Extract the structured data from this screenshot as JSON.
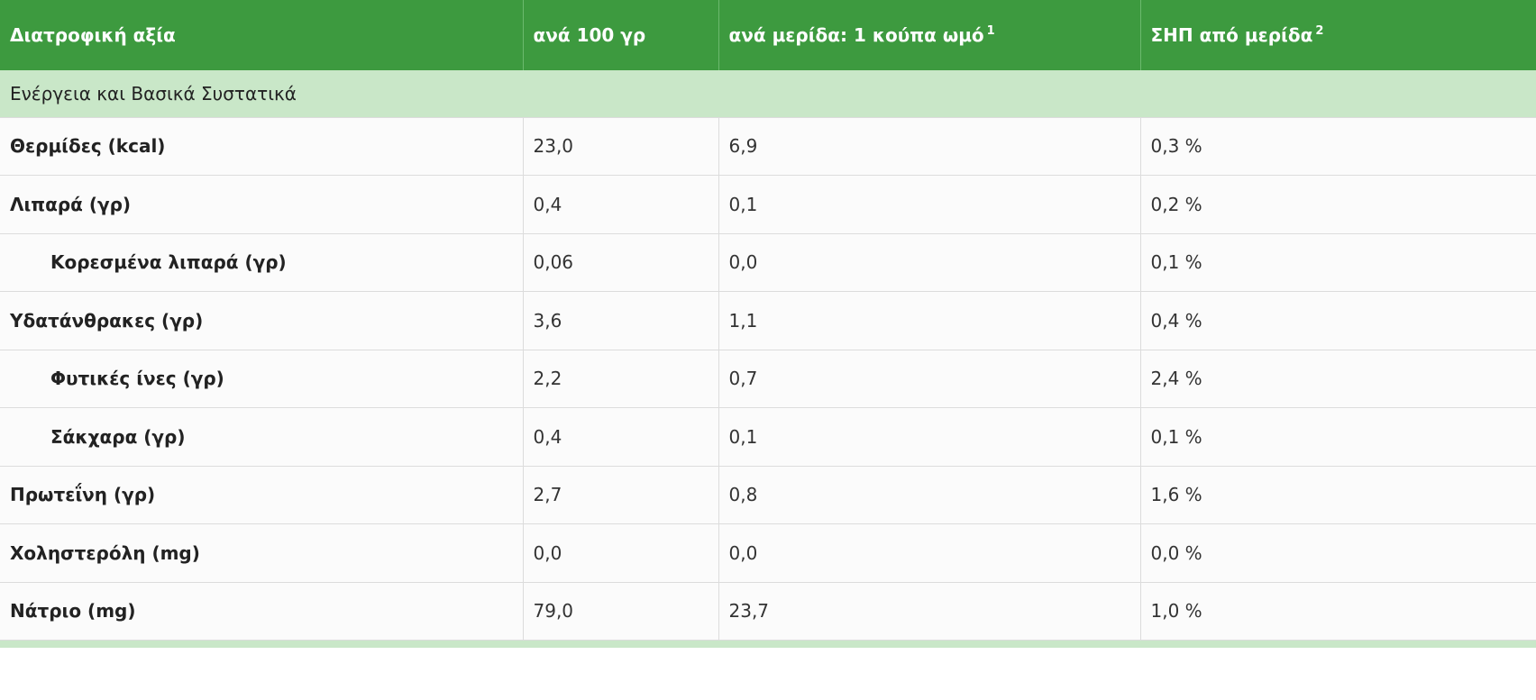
{
  "table": {
    "headers": {
      "nutrient": "Διατροφική αξία",
      "per100": "ανά 100 γρ",
      "per_serving": "ανά μερίδα: 1 κούπα ωμό",
      "per_serving_note": "1",
      "dv": "ΣΗΠ από μερίδα",
      "dv_note": "2"
    },
    "section_title": "Ενέργεια και Βασικά Συστατικά",
    "rows": [
      {
        "name": "Θερμίδες (kcal)",
        "per100": "23,0",
        "serving": "6,9",
        "dv": "0,3 %"
      },
      {
        "name": "Λιπαρά (γρ)",
        "per100": "0,4",
        "serving": "0,1",
        "dv": "0,2 %"
      },
      {
        "name": "Κορεσμένα λιπαρά (γρ)",
        "per100": "0,06",
        "serving": "0,0",
        "dv": "0,1 %"
      },
      {
        "name": "Υδατάνθρακες (γρ)",
        "per100": "3,6",
        "serving": "1,1",
        "dv": "0,4 %"
      },
      {
        "name": "Φυτικές ίνες (γρ)",
        "per100": "2,2",
        "serving": "0,7",
        "dv": "2,4 %"
      },
      {
        "name": "Σάκχαρα (γρ)",
        "per100": "0,4",
        "serving": "0,1",
        "dv": "0,1 %"
      },
      {
        "name": "Πρωτεΐνη (γρ)",
        "per100": "2,7",
        "serving": "0,8",
        "dv": "1,6 %"
      },
      {
        "name": "Χοληστερόλη (mg)",
        "per100": "0,0",
        "serving": "0,0",
        "dv": "0,0 %"
      },
      {
        "name": "Νάτριο (mg)",
        "per100": "79,0",
        "serving": "23,7",
        "dv": "1,0 %"
      }
    ]
  },
  "colors": {
    "header_bg": "#3d9a3f",
    "section_bg": "#c9e7c8",
    "row_bg": "#fbfbfb"
  }
}
